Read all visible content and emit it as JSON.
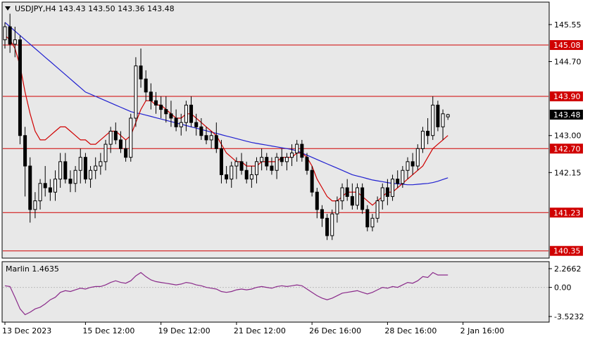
{
  "header": {
    "symbol_line": "USDJPY,H4  143.43 143.50 143.36 143.48",
    "indicator_label": "Marlin 1.4635"
  },
  "colors": {
    "background": "#ffffff",
    "plot_bg": "#e8e8e8",
    "bull_fill": "#ffffff",
    "bear_fill": "#000000",
    "candle_outline": "#000000",
    "level_line": "#d00000",
    "level_label_bg": "#d00000",
    "price_label_bg": "#000000",
    "ma_fast": "#d00000",
    "ma_slow": "#2020d0",
    "oscillator": "#8a2a8a"
  },
  "chart_data": {
    "type": "candlestick",
    "symbol": "USDJPY",
    "timeframe": "H4",
    "last_price": 143.48,
    "price_range": [
      140.2,
      146.05
    ],
    "price_ticks": [
      "145.55",
      "144.70",
      "143.00",
      "142.15"
    ],
    "levels": [
      {
        "price": 145.08,
        "label": "145.08"
      },
      {
        "price": 143.9,
        "label": "143.90"
      },
      {
        "price": 142.7,
        "label": "142.70"
      },
      {
        "price": 141.23,
        "label": "141.23"
      },
      {
        "price": 140.35,
        "label": "140.35"
      }
    ],
    "x_labels": [
      {
        "index": 0,
        "label": "13 Dec 2023"
      },
      {
        "index": 16,
        "label": "15 Dec 12:00"
      },
      {
        "index": 31,
        "label": "19 Dec 12:00"
      },
      {
        "index": 46,
        "label": "21 Dec 12:00"
      },
      {
        "index": 61,
        "label": "26 Dec 16:00"
      },
      {
        "index": 76,
        "label": "28 Dec 16:00"
      },
      {
        "index": 91,
        "label": "2 Jan 16:00"
      }
    ],
    "candles": [
      [
        145.2,
        145.6,
        145.0,
        145.5
      ],
      [
        145.5,
        145.8,
        144.9,
        145.1
      ],
      [
        145.1,
        145.5,
        144.8,
        145.2
      ],
      [
        145.2,
        145.3,
        142.8,
        143.0
      ],
      [
        143.0,
        143.2,
        141.6,
        142.3
      ],
      [
        142.3,
        142.5,
        141.0,
        141.3
      ],
      [
        141.3,
        141.7,
        141.1,
        141.5
      ],
      [
        141.5,
        142.0,
        141.3,
        141.9
      ],
      [
        141.9,
        142.3,
        141.6,
        141.8
      ],
      [
        141.8,
        142.0,
        141.5,
        141.7
      ],
      [
        141.7,
        142.2,
        141.5,
        142.0
      ],
      [
        142.0,
        142.6,
        141.8,
        142.4
      ],
      [
        142.4,
        142.6,
        141.9,
        142.0
      ],
      [
        142.0,
        142.2,
        141.7,
        141.9
      ],
      [
        141.9,
        142.3,
        141.7,
        142.2
      ],
      [
        142.2,
        142.7,
        141.9,
        142.5
      ],
      [
        142.5,
        142.6,
        141.9,
        142.0
      ],
      [
        142.0,
        142.3,
        141.8,
        142.2
      ],
      [
        142.2,
        142.5,
        142.0,
        142.3
      ],
      [
        142.3,
        142.6,
        142.1,
        142.4
      ],
      [
        142.4,
        142.9,
        142.2,
        142.8
      ],
      [
        142.8,
        143.2,
        142.6,
        143.1
      ],
      [
        143.1,
        143.3,
        142.8,
        142.9
      ],
      [
        142.9,
        143.1,
        142.6,
        142.7
      ],
      [
        142.7,
        142.9,
        142.4,
        142.5
      ],
      [
        142.5,
        143.5,
        142.4,
        143.4
      ],
      [
        143.4,
        144.8,
        143.2,
        144.6
      ],
      [
        144.6,
        145.0,
        144.1,
        144.3
      ],
      [
        144.3,
        144.5,
        143.8,
        144.0
      ],
      [
        144.0,
        144.2,
        143.6,
        143.8
      ],
      [
        143.8,
        144.0,
        143.5,
        143.7
      ],
      [
        143.7,
        143.9,
        143.4,
        143.6
      ],
      [
        143.6,
        143.9,
        143.3,
        143.5
      ],
      [
        143.5,
        143.8,
        143.2,
        143.4
      ],
      [
        143.4,
        143.6,
        143.1,
        143.2
      ],
      [
        143.2,
        143.5,
        143.0,
        143.3
      ],
      [
        143.3,
        143.8,
        143.1,
        143.7
      ],
      [
        143.7,
        143.9,
        143.2,
        143.3
      ],
      [
        143.3,
        143.5,
        143.0,
        143.2
      ],
      [
        143.2,
        143.4,
        142.9,
        143.0
      ],
      [
        143.0,
        143.2,
        142.8,
        142.9
      ],
      [
        142.9,
        143.1,
        142.7,
        143.0
      ],
      [
        143.0,
        143.3,
        142.6,
        142.7
      ],
      [
        142.7,
        142.9,
        141.9,
        142.1
      ],
      [
        142.1,
        142.3,
        141.9,
        142.0
      ],
      [
        142.0,
        142.4,
        141.8,
        142.3
      ],
      [
        142.3,
        142.5,
        142.0,
        142.4
      ],
      [
        142.4,
        142.6,
        142.1,
        142.2
      ],
      [
        142.2,
        142.4,
        141.9,
        142.0
      ],
      [
        142.0,
        142.3,
        141.8,
        142.1
      ],
      [
        142.1,
        142.5,
        141.9,
        142.4
      ],
      [
        142.4,
        142.7,
        142.2,
        142.5
      ],
      [
        142.5,
        142.6,
        142.2,
        142.3
      ],
      [
        142.3,
        142.5,
        142.1,
        142.2
      ],
      [
        142.2,
        142.6,
        142.0,
        142.5
      ],
      [
        142.5,
        142.7,
        142.3,
        142.4
      ],
      [
        142.4,
        142.6,
        142.2,
        142.5
      ],
      [
        142.5,
        142.8,
        142.3,
        142.6
      ],
      [
        142.6,
        142.9,
        142.4,
        142.8
      ],
      [
        142.8,
        142.9,
        142.4,
        142.5
      ],
      [
        142.5,
        142.6,
        142.1,
        142.2
      ],
      [
        142.2,
        142.3,
        141.6,
        141.7
      ],
      [
        141.7,
        141.8,
        141.1,
        141.3
      ],
      [
        141.3,
        141.4,
        140.9,
        141.1
      ],
      [
        141.1,
        141.2,
        140.6,
        140.7
      ],
      [
        140.7,
        141.3,
        140.6,
        141.2
      ],
      [
        141.2,
        141.6,
        141.0,
        141.5
      ],
      [
        141.5,
        141.9,
        141.3,
        141.8
      ],
      [
        141.8,
        142.0,
        141.5,
        141.6
      ],
      [
        141.6,
        141.9,
        141.3,
        141.4
      ],
      [
        141.4,
        141.9,
        141.3,
        141.8
      ],
      [
        141.8,
        141.9,
        141.2,
        141.3
      ],
      [
        141.3,
        141.4,
        140.8,
        140.9
      ],
      [
        140.9,
        141.2,
        140.8,
        141.1
      ],
      [
        141.1,
        141.6,
        141.0,
        141.5
      ],
      [
        141.5,
        141.9,
        141.3,
        141.8
      ],
      [
        141.8,
        142.0,
        141.4,
        141.6
      ],
      [
        141.6,
        142.1,
        141.5,
        142.0
      ],
      [
        142.0,
        142.2,
        141.8,
        141.9
      ],
      [
        141.9,
        142.3,
        141.8,
        142.2
      ],
      [
        142.2,
        142.5,
        142.0,
        142.4
      ],
      [
        142.4,
        142.6,
        142.1,
        142.3
      ],
      [
        142.3,
        142.8,
        142.2,
        142.7
      ],
      [
        142.7,
        143.2,
        142.6,
        143.1
      ],
      [
        143.1,
        143.4,
        142.8,
        143.0
      ],
      [
        143.0,
        143.9,
        142.9,
        143.7
      ],
      [
        143.7,
        143.8,
        143.1,
        143.2
      ],
      [
        143.2,
        143.6,
        142.9,
        143.5
      ],
      [
        143.43,
        143.5,
        143.36,
        143.48
      ]
    ],
    "ma_fast_values": [
      145.3,
      145.2,
      145.0,
      144.6,
      144.0,
      143.5,
      143.1,
      142.9,
      142.9,
      143.0,
      143.1,
      143.2,
      143.2,
      143.1,
      143.0,
      142.9,
      142.9,
      142.8,
      142.8,
      142.9,
      143.0,
      143.1,
      143.1,
      143.0,
      142.9,
      143.0,
      143.3,
      143.6,
      143.8,
      143.8,
      143.7,
      143.7,
      143.6,
      143.5,
      143.4,
      143.4,
      143.5,
      143.5,
      143.4,
      143.3,
      143.2,
      143.1,
      143.0,
      142.8,
      142.6,
      142.5,
      142.4,
      142.4,
      142.3,
      142.3,
      142.3,
      142.4,
      142.4,
      142.4,
      142.4,
      142.5,
      142.5,
      142.5,
      142.6,
      142.6,
      142.5,
      142.3,
      142.0,
      141.8,
      141.6,
      141.5,
      141.5,
      141.6,
      141.7,
      141.7,
      141.7,
      141.6,
      141.5,
      141.4,
      141.5,
      141.6,
      141.7,
      141.7,
      141.8,
      141.9,
      142.0,
      142.1,
      142.2,
      142.3,
      142.5,
      142.7,
      142.8,
      142.9,
      143.0
    ],
    "ma_slow_values": [
      145.6,
      145.5,
      145.4,
      145.3,
      145.2,
      145.1,
      145.0,
      144.9,
      144.8,
      144.7,
      144.6,
      144.5,
      144.4,
      144.3,
      144.2,
      144.1,
      144.0,
      143.95,
      143.9,
      143.85,
      143.8,
      143.75,
      143.7,
      143.65,
      143.6,
      143.55,
      143.52,
      143.5,
      143.47,
      143.44,
      143.41,
      143.38,
      143.35,
      143.32,
      143.29,
      143.26,
      143.23,
      143.2,
      143.17,
      143.14,
      143.11,
      143.08,
      143.05,
      143.02,
      142.99,
      142.96,
      142.93,
      142.9,
      142.87,
      142.84,
      142.82,
      142.8,
      142.78,
      142.76,
      142.74,
      142.72,
      142.7,
      142.68,
      142.65,
      142.6,
      142.55,
      142.5,
      142.45,
      142.4,
      142.35,
      142.3,
      142.25,
      142.2,
      142.15,
      142.1,
      142.07,
      142.04,
      142.01,
      141.98,
      141.96,
      141.94,
      141.92,
      141.9,
      141.89,
      141.88,
      141.87,
      141.87,
      141.88,
      141.89,
      141.9,
      141.92,
      141.95,
      141.99,
      142.03
    ],
    "oscillator": {
      "name": "Marlin",
      "value": "1.4635",
      "range": [
        -3.5232,
        2.2662
      ],
      "ticks": [
        "2.2662",
        "0.00",
        "-3.5232"
      ],
      "values": [
        0.2,
        0.1,
        -1.2,
        -2.6,
        -3.3,
        -3.0,
        -2.6,
        -2.4,
        -2.0,
        -1.5,
        -1.2,
        -0.6,
        -0.4,
        -0.5,
        -0.3,
        -0.1,
        -0.2,
        0.0,
        0.1,
        0.1,
        0.3,
        0.6,
        0.8,
        0.6,
        0.5,
        0.8,
        1.4,
        1.8,
        1.3,
        0.9,
        0.7,
        0.6,
        0.5,
        0.4,
        0.3,
        0.4,
        0.6,
        0.5,
        0.3,
        0.2,
        0.0,
        -0.1,
        -0.2,
        -0.5,
        -0.6,
        -0.5,
        -0.3,
        -0.2,
        -0.3,
        -0.2,
        0.0,
        0.1,
        0.0,
        -0.1,
        0.1,
        0.2,
        0.1,
        0.2,
        0.3,
        0.2,
        -0.2,
        -0.6,
        -1.0,
        -1.3,
        -1.5,
        -1.3,
        -1.0,
        -0.7,
        -0.6,
        -0.5,
        -0.4,
        -0.6,
        -0.8,
        -0.6,
        -0.3,
        0.0,
        -0.1,
        0.1,
        0.0,
        0.3,
        0.6,
        0.5,
        0.8,
        1.3,
        1.2,
        1.8,
        1.5,
        1.5,
        1.5
      ]
    }
  }
}
